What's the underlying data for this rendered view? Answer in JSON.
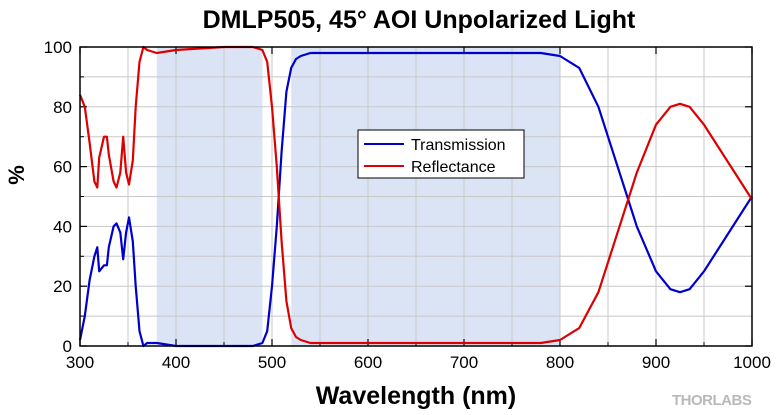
{
  "chart_data": {
    "type": "line",
    "title": "DMLP505, 45° AOI Unpolarized Light",
    "xlabel": "Wavelength (nm)",
    "ylabel": "%",
    "xlim": [
      300,
      1000
    ],
    "ylim": [
      0,
      100
    ],
    "x_ticks": [
      300,
      400,
      500,
      600,
      700,
      800,
      900,
      1000
    ],
    "y_ticks": [
      0,
      20,
      40,
      60,
      80,
      100
    ],
    "grid": true,
    "legend": "center",
    "shaded_bands": [
      {
        "x0": 380,
        "x1": 490,
        "color": "#dbe4f5"
      },
      {
        "x0": 520,
        "x1": 800,
        "color": "#dbe4f5"
      }
    ],
    "series": [
      {
        "name": "Transmission",
        "color": "#0000cc",
        "x": [
          300,
          305,
          310,
          315,
          318,
          320,
          325,
          328,
          330,
          335,
          338,
          342,
          345,
          348,
          351,
          355,
          358,
          362,
          366,
          370,
          380,
          400,
          450,
          480,
          490,
          495,
          500,
          505,
          510,
          515,
          520,
          525,
          530,
          540,
          560,
          600,
          700,
          780,
          800,
          820,
          840,
          860,
          880,
          900,
          915,
          925,
          935,
          950,
          970,
          990,
          1000
        ],
        "y": [
          2,
          10,
          22,
          30,
          33,
          25,
          27,
          27,
          33,
          40,
          41,
          38,
          29,
          38,
          43,
          35,
          20,
          5,
          0,
          1,
          1,
          0,
          0,
          0,
          1,
          5,
          20,
          40,
          65,
          85,
          93,
          96,
          97,
          98,
          98,
          98,
          98,
          98,
          97,
          93,
          80,
          60,
          40,
          25,
          19,
          18,
          19,
          25,
          35,
          45,
          50
        ]
      },
      {
        "name": "Reflectance",
        "color": "#dd0000",
        "x": [
          300,
          305,
          310,
          315,
          318,
          320,
          325,
          328,
          330,
          335,
          338,
          342,
          345,
          348,
          351,
          355,
          358,
          362,
          366,
          370,
          380,
          400,
          450,
          480,
          490,
          495,
          500,
          505,
          510,
          515,
          520,
          525,
          530,
          540,
          560,
          600,
          700,
          780,
          800,
          820,
          840,
          860,
          880,
          900,
          915,
          925,
          935,
          950,
          970,
          990,
          1000
        ],
        "y": [
          84,
          80,
          68,
          55,
          53,
          63,
          70,
          70,
          64,
          55,
          53,
          58,
          70,
          58,
          54,
          62,
          80,
          95,
          100,
          99,
          98,
          99,
          100,
          100,
          99,
          95,
          80,
          60,
          35,
          15,
          6,
          3,
          2,
          1,
          1,
          1,
          1,
          1,
          2,
          6,
          18,
          38,
          58,
          74,
          80,
          81,
          80,
          74,
          64,
          54,
          49
        ]
      }
    ]
  },
  "watermark": "THORLABS"
}
